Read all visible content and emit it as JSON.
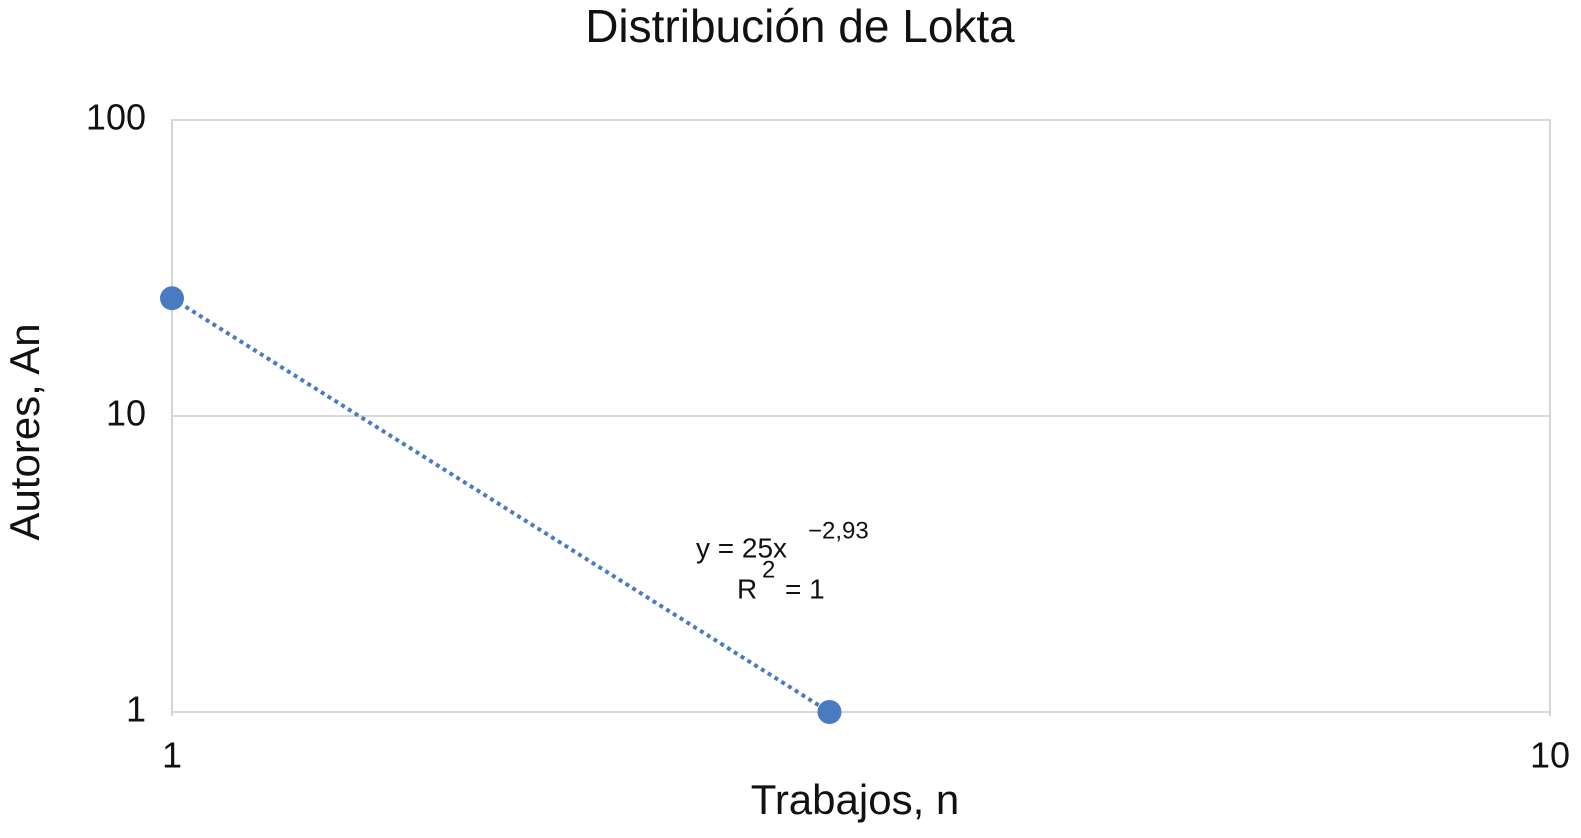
{
  "chart_data": {
    "type": "scatter",
    "title": "Distribución de Lokta",
    "x_label": "Trabajos, n",
    "y_label": "Autores, An",
    "x_scale": "log",
    "y_scale": "log",
    "xlim": [
      1,
      10
    ],
    "ylim": [
      1,
      100
    ],
    "xticks": [
      1,
      10
    ],
    "yticks": [
      1,
      10,
      100
    ],
    "grid": true,
    "series": [
      {
        "color": "#4a7bc0",
        "x": [
          1,
          3
        ],
        "values": [
          25,
          1
        ],
        "trendline": "dotted"
      }
    ],
    "annotation": {
      "equation": "y = 25x",
      "equation_exponent": "−2,93",
      "r2": "R",
      "r2_exponent": "2",
      "r2_value": "= 1"
    }
  }
}
